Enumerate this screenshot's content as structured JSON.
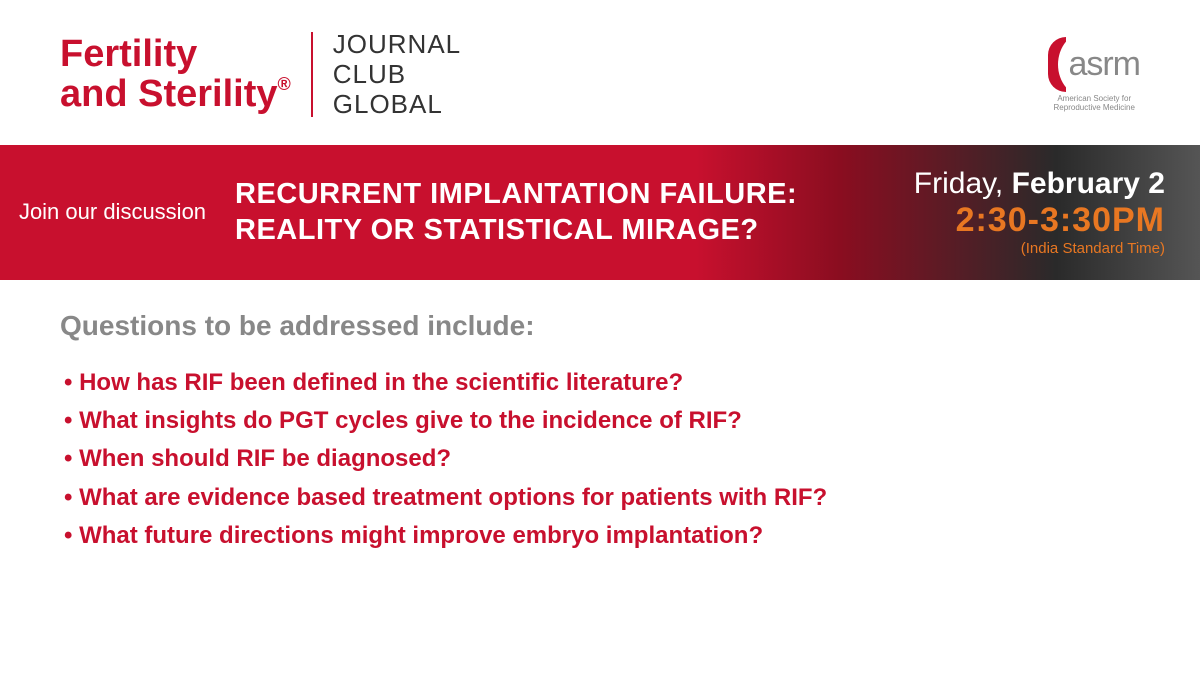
{
  "header": {
    "brand_line1": "Fertility",
    "brand_line2": "and Sterility",
    "brand_reg": "®",
    "journal_line1": "JOURNAL",
    "journal_line2": "CLUB",
    "journal_line3": "GLOBAL",
    "asrm_text": "asrm",
    "asrm_sub1": "American Society for",
    "asrm_sub2": "Reproductive Medicine"
  },
  "banner": {
    "join_text": "Join our discussion",
    "title": "RECURRENT IMPLANTATION FAILURE: REALITY OR STATISTICAL MIRAGE?",
    "date_prefix": "Friday, ",
    "date_bold": "February 2",
    "time": "2:30-3:30PM",
    "timezone": "(India Standard Time)"
  },
  "content": {
    "heading": "Questions to be addressed include:",
    "questions": [
      "How has RIF been defined in the scientific literature?",
      "What insights do PGT cycles give to the incidence of RIF?",
      "When should RIF be diagnosed?",
      "What are evidence based treatment options for patients with RIF?",
      "What future directions might improve embryo implantation?"
    ]
  },
  "colors": {
    "brand_red": "#c8102e",
    "orange": "#e87722",
    "gray_text": "#888888"
  }
}
